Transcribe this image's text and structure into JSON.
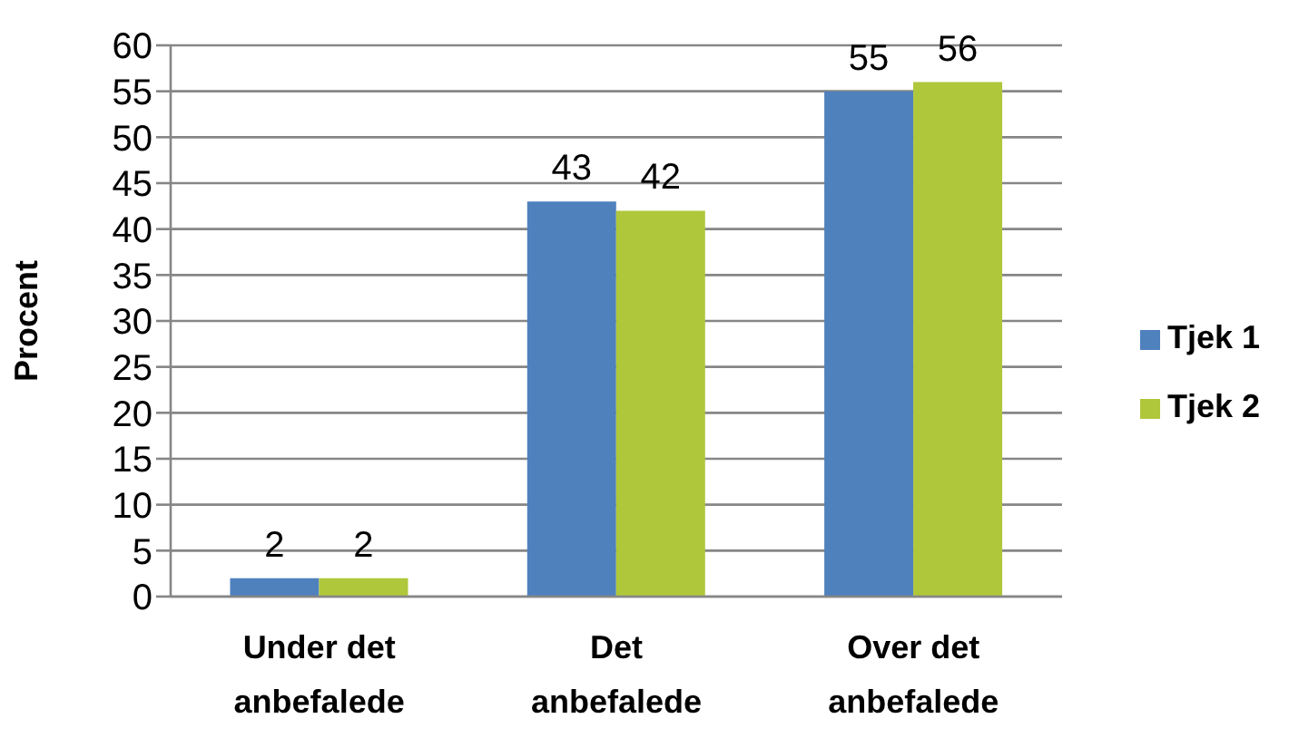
{
  "chart_data": {
    "type": "bar",
    "ylabel": "Procent",
    "categories": [
      "Under det anbefalede",
      "Det anbefalede",
      "Over det anbefalede"
    ],
    "series": [
      {
        "name": "Tjek 1",
        "color": "#4f81bd",
        "values": [
          2,
          43,
          55
        ]
      },
      {
        "name": "Tjek 2",
        "color": "#afc73a",
        "values": [
          2,
          42,
          56
        ]
      }
    ],
    "ylim": [
      0,
      60
    ],
    "yticks": [
      0,
      5,
      10,
      15,
      20,
      25,
      30,
      35,
      40,
      45,
      50,
      55,
      60
    ],
    "grid": "y",
    "legend": "right",
    "data_labels": true
  }
}
